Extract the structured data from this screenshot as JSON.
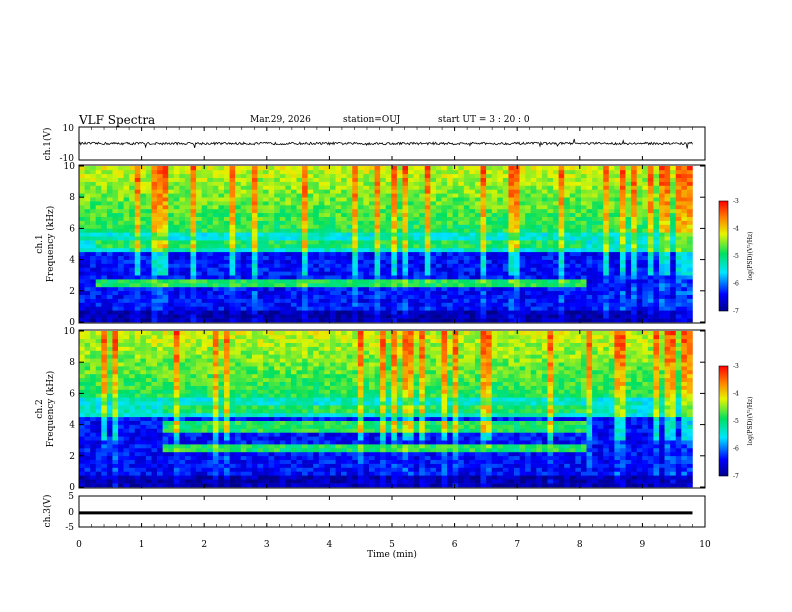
{
  "header": {
    "title": "VLF Spectra",
    "date": "Mar.29, 2026",
    "station": "station=OUJ",
    "start_ut": "start  UT =   3 : 20 : 0"
  },
  "colors": {
    "axis": "#000000",
    "background": "#ffffff",
    "waveform": "#000000"
  },
  "chart_data": [
    {
      "type": "line",
      "name": "ch1-waveform",
      "ylabel": "ch.1(V)",
      "yticks": [
        "10",
        "-10"
      ],
      "ylim": [
        -10,
        10
      ],
      "xlim": [
        0,
        10
      ],
      "baseline": 0,
      "note": "noisy signal around 0 V with amplitude ~1 V and occasional spikes"
    },
    {
      "type": "heatmap",
      "name": "ch1-spectrogram",
      "ylabel": "ch.1 Frequency (kHz)",
      "ylim": [
        0,
        10
      ],
      "yticks": [
        "0",
        "2",
        "4",
        "6",
        "8",
        "10"
      ],
      "xlim": [
        0,
        10
      ],
      "colorbar": {
        "label": "log(PSD)(V²/Hz)",
        "range": [
          -7,
          -3
        ],
        "ticks": [
          "-3",
          "-4",
          "-5",
          "-6",
          "-7"
        ]
      },
      "data_end_min": 9.8,
      "bands_khz": [
        {
          "freq": 5.0,
          "t_start": 0.3,
          "t_end": 8.1
        },
        {
          "freq": 2.5,
          "t_start": 0.3,
          "t_end": 8.1
        }
      ]
    },
    {
      "type": "heatmap",
      "name": "ch2-spectrogram",
      "ylabel": "ch.2 Frequency (kHz)",
      "ylim": [
        0,
        10
      ],
      "yticks": [
        "0",
        "2",
        "4",
        "6",
        "8",
        "10"
      ],
      "xlim": [
        0,
        10
      ],
      "colorbar": {
        "label": "log(PSD)(V²/Hz)",
        "range": [
          -7,
          -3
        ],
        "ticks": [
          "-3",
          "-4",
          "-5",
          "-6",
          "-7"
        ]
      },
      "data_end_min": 9.8,
      "bands_khz": [
        {
          "freq": 5.0,
          "t_start": 1.3,
          "t_end": 8.1
        },
        {
          "freq": 3.8,
          "t_start": 1.3,
          "t_end": 8.1
        },
        {
          "freq": 2.5,
          "t_start": 1.3,
          "t_end": 8.1
        }
      ]
    },
    {
      "type": "line",
      "name": "ch3-waveform",
      "ylabel": "ch.3(V)",
      "yticks": [
        "5",
        "0",
        "-5"
      ],
      "ylim": [
        -5,
        5
      ],
      "xlim": [
        0,
        10
      ],
      "baseline": -0.5,
      "note": "flat thick line near 0 V"
    }
  ],
  "xaxis": {
    "label": "Time  (min)",
    "ticks": [
      "0",
      "1",
      "2",
      "3",
      "4",
      "5",
      "6",
      "7",
      "8",
      "9",
      "10"
    ]
  }
}
